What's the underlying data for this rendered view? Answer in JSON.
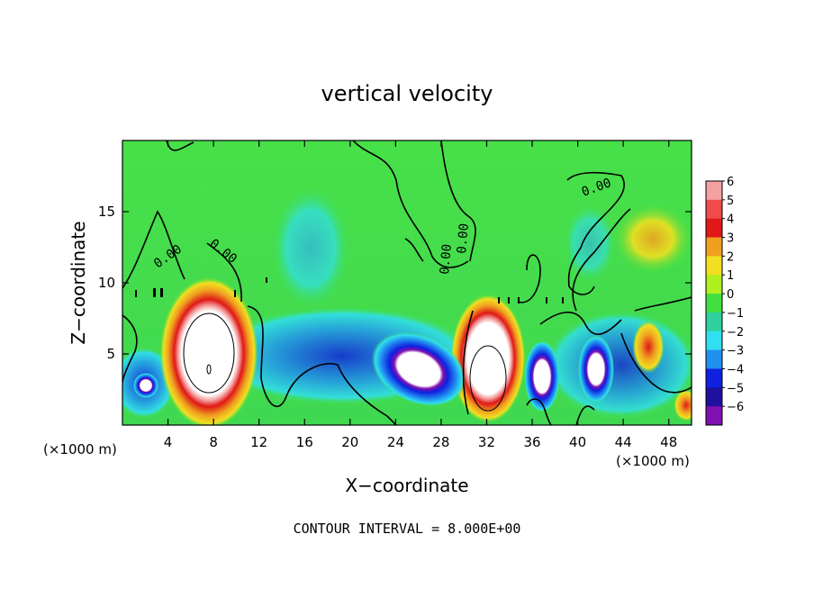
{
  "chart_data": {
    "type": "heatmap",
    "title": "vertical velocity",
    "xlabel": "X−coordinate",
    "ylabel": "Z−coordinate",
    "x_unit_left": "(×1000 m)",
    "x_unit_right": "(×1000 m)",
    "xlim": [
      0,
      50
    ],
    "ylim": [
      0,
      20
    ],
    "x_ticks": [
      4,
      8,
      12,
      16,
      20,
      24,
      28,
      32,
      36,
      40,
      44,
      48
    ],
    "y_ticks": [
      5,
      10,
      15
    ],
    "colorbar": {
      "levels": [
        6,
        5,
        4,
        3,
        2,
        1,
        0,
        -1,
        -2,
        -3,
        -4,
        -5,
        -6
      ],
      "labels": [
        "6",
        "5",
        "4",
        "3",
        "2",
        "1",
        "0",
        "−1",
        "−2",
        "−3",
        "−4",
        "−5",
        "−6"
      ],
      "colors": [
        "#f4a0a0",
        "#f04a4a",
        "#e01818",
        "#f0a020",
        "#f0e020",
        "#b0f020",
        "#40e040",
        "#30d0a0",
        "#30e0f0",
        "#2090f0",
        "#1020e0",
        "#2010a0",
        "#8010b0"
      ]
    },
    "contour_labels": [
      "0.00",
      "0.00",
      "0.00",
      "0.00",
      "0.00"
    ],
    "annotation": "CONTOUR INTERVAL = 8.000E+00",
    "updraft_cores": [
      {
        "x": 7.5,
        "z": 4.5,
        "w": 8
      },
      {
        "x": 31.5,
        "z": 4.0,
        "w": 8
      }
    ],
    "downdraft_cores": [
      {
        "x": 25.0,
        "z": 3.5,
        "w": -8
      },
      {
        "x": 37.0,
        "z": 3.0,
        "w": -7
      },
      {
        "x": 41.5,
        "z": 3.5,
        "w": -7
      },
      {
        "x": 2.0,
        "z": 2.5,
        "w": -5
      }
    ]
  }
}
